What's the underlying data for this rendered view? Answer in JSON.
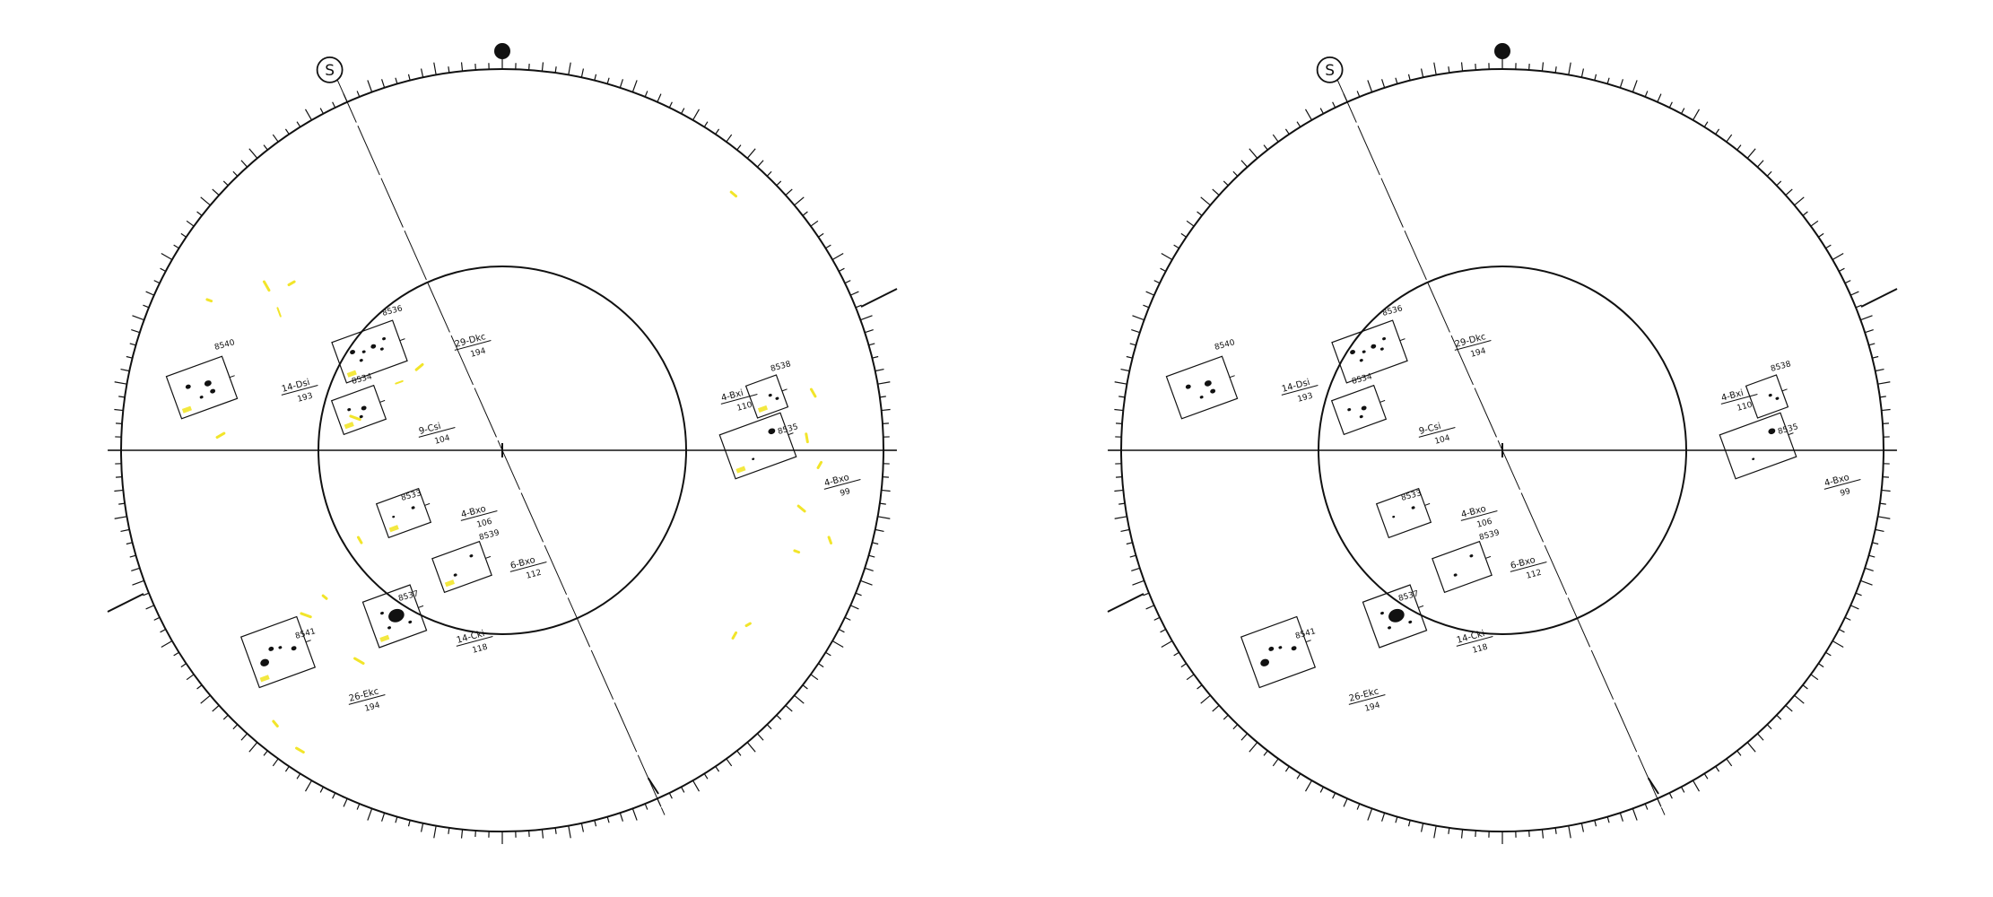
{
  "drawings": [
    {
      "id": "left",
      "show_yellow": true,
      "marker_label": "S",
      "groups": [
        {
          "number": "8536",
          "class": "29-Dkc",
          "area": "194"
        },
        {
          "number": "8540",
          "class": "14-Dsi",
          "area": "193"
        },
        {
          "number": "8534",
          "class": "9-Csi",
          "area": "104"
        },
        {
          "number": "8538",
          "class": "4-Bxi",
          "area": "110"
        },
        {
          "number": "8535",
          "class": "4-Bxo",
          "area": "99"
        },
        {
          "number": "8533",
          "class": "4-Bxo",
          "area": "106"
        },
        {
          "number": "8539",
          "class": "6-Bxo",
          "area": "112"
        },
        {
          "number": "8537",
          "class": "14-Cki",
          "area": "118"
        },
        {
          "number": "8541",
          "class": "26-Ekc",
          "area": "194"
        }
      ]
    },
    {
      "id": "right",
      "show_yellow": false,
      "marker_label": "S",
      "groups": [
        {
          "number": "8536",
          "class": "29-Dkc",
          "area": "194"
        },
        {
          "number": "8540",
          "class": "14-Dsi",
          "area": "193"
        },
        {
          "number": "8534",
          "class": "9-Csi",
          "area": "104"
        },
        {
          "number": "8538",
          "class": "4-Bxi",
          "area": "110"
        },
        {
          "number": "8535",
          "class": "4-Bxo",
          "area": "99"
        },
        {
          "number": "8533",
          "class": "4-Bxo",
          "area": "106"
        },
        {
          "number": "8539",
          "class": "6-Bxo",
          "area": "112"
        },
        {
          "number": "8537",
          "class": "14-Cki",
          "area": "118"
        },
        {
          "number": "8541",
          "class": "26-Ekc",
          "area": "194"
        }
      ]
    }
  ],
  "colors": {
    "ink": "#111111",
    "highlight": "#f2e52a",
    "background": "#ffffff"
  }
}
